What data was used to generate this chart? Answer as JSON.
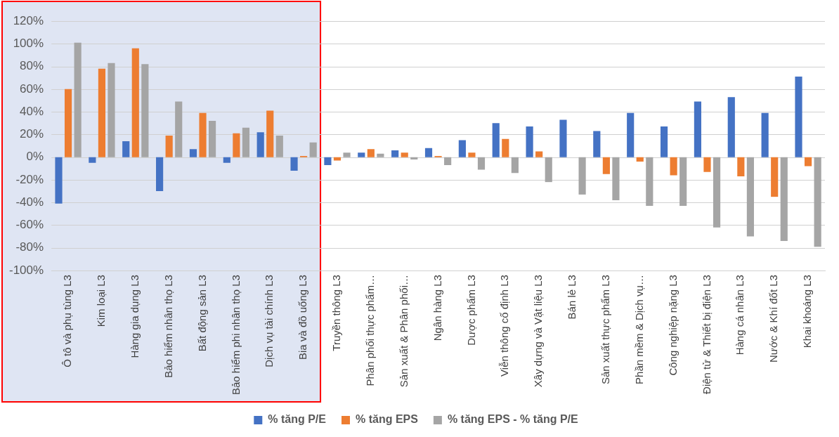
{
  "chart_data": {
    "type": "bar",
    "categories": [
      "Ô tô và phụ tùng L3",
      "Kim loại L3",
      "Hàng gia dụng L3",
      "Bảo hiểm nhân thọ L3",
      "Bất động sản L3",
      "Bảo hiểm phi nhân thọ L3",
      "Dịch vụ tài chính L3",
      "Bia và đồ uống L3",
      "Truyền thông L3",
      "Phân phối thực phẩm…",
      "Sản xuất & Phân phối…",
      "Ngân hàng L3",
      "Dược phẩm L3",
      "Viễn thông cố định L3",
      "Xây dựng và Vật liệu L3",
      "Bán lẻ L3",
      "Sản xuất thực phẩm L3",
      "Phần mềm & Dịch vụ…",
      "Công nghiệp nặng L3",
      "Điện tử & Thiết bị điện L3",
      "Hàng cá nhân L3",
      "Nước & Khí đốt L3",
      "Khai khoáng L3"
    ],
    "series": [
      {
        "name": "% tăng P/E",
        "color": "#4472c4",
        "values": [
          -41,
          -5,
          14,
          -30,
          7,
          -5,
          22,
          -12,
          -7,
          4,
          6,
          8,
          15,
          30,
          27,
          33,
          23,
          39,
          27,
          49,
          53,
          39,
          71
        ]
      },
      {
        "name": "% tăng EPS",
        "color": "#ed7d31",
        "values": [
          60,
          78,
          96,
          19,
          39,
          21,
          41,
          1,
          -3,
          7,
          4,
          1,
          4,
          16,
          5,
          0,
          -15,
          -4,
          -16,
          -13,
          -17,
          -35,
          -8
        ]
      },
      {
        "name": "% tăng EPS - % tăng P/E",
        "color": "#a5a5a5",
        "values": [
          101,
          83,
          82,
          49,
          32,
          26,
          19,
          13,
          4,
          3,
          -2,
          -7,
          -11,
          -14,
          -22,
          -33,
          -38,
          -43,
          -43,
          -62,
          -70,
          -74,
          -79
        ]
      }
    ],
    "ylim": [
      -100,
      120
    ],
    "yticks": [
      {
        "value": -100,
        "label": "-100%"
      },
      {
        "value": -80,
        "label": "-80%"
      },
      {
        "value": -60,
        "label": "-60%"
      },
      {
        "value": -40,
        "label": "-40%"
      },
      {
        "value": -20,
        "label": "-20%"
      },
      {
        "value": 0,
        "label": "0%"
      },
      {
        "value": 20,
        "label": "20%"
      },
      {
        "value": 40,
        "label": "40%"
      },
      {
        "value": 60,
        "label": "60%"
      },
      {
        "value": 80,
        "label": "80%"
      },
      {
        "value": 100,
        "label": "100%"
      },
      {
        "value": 120,
        "label": "120%"
      }
    ],
    "bands": [
      {
        "axis": "x",
        "from": "Ô tô và phụ tùng L3",
        "to": "Bia và đồ uống L3",
        "color": "#dfe5f3"
      }
    ],
    "grid": "y",
    "legend": "bottom"
  }
}
